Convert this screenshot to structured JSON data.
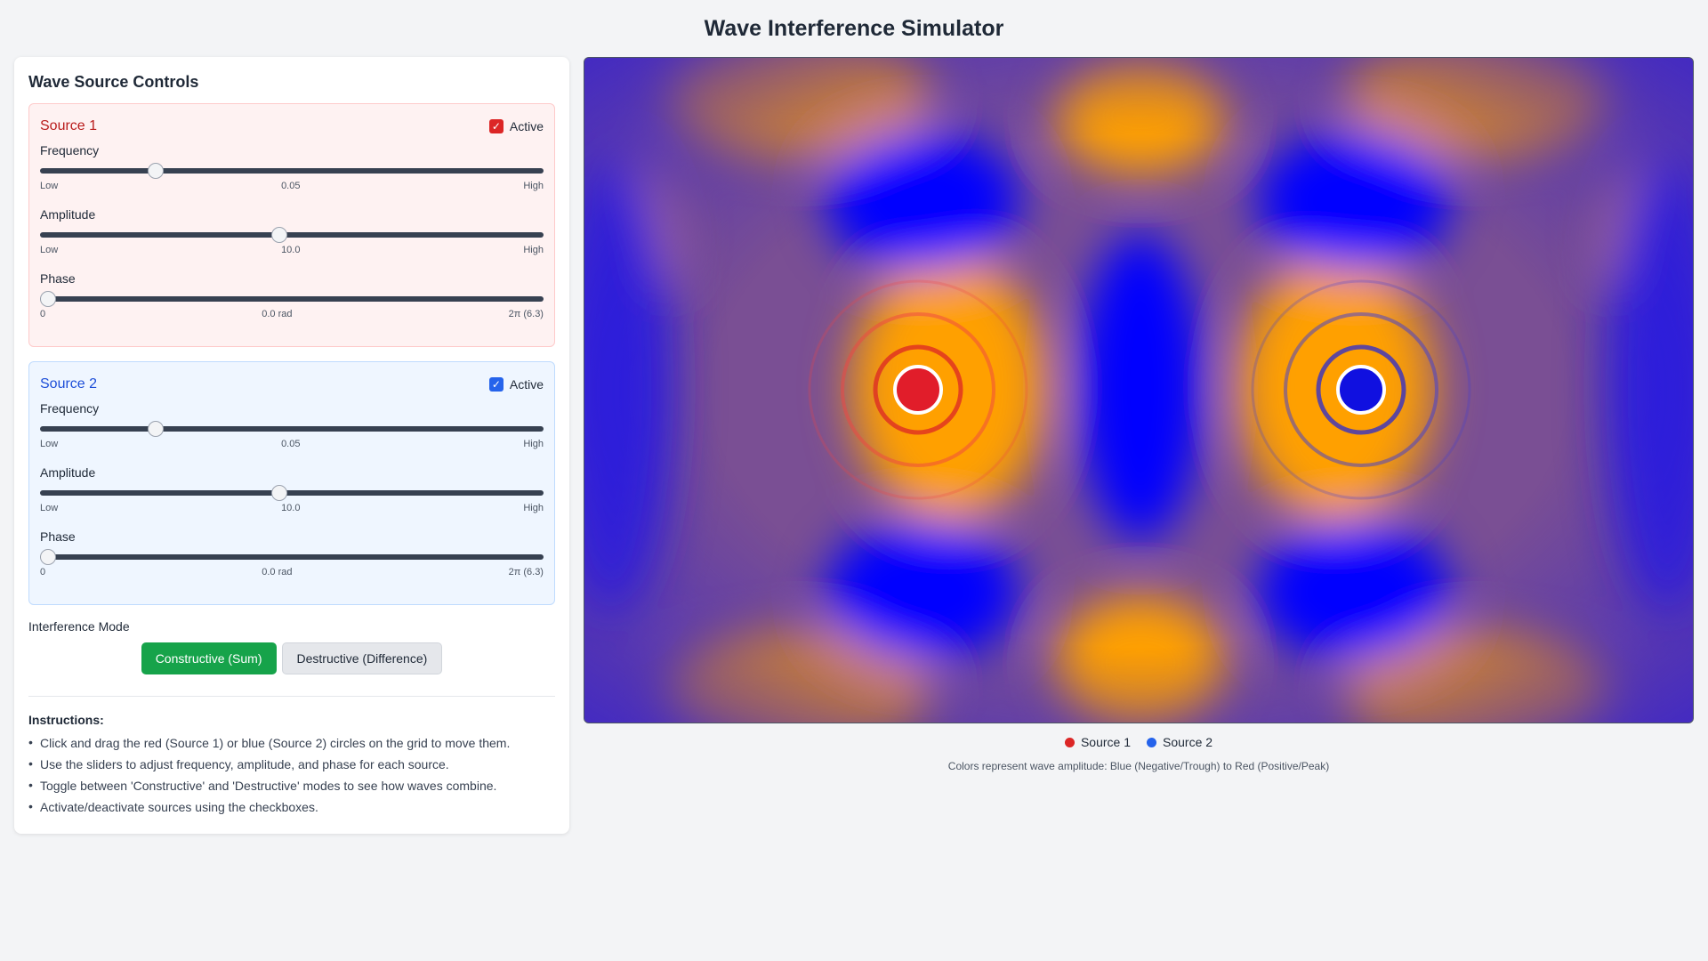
{
  "title": "Wave Interference Simulator",
  "panel": {
    "title": "Wave Source Controls",
    "sources": [
      {
        "name": "Source 1",
        "active_label": "Active",
        "active": true,
        "color": "#dc2626",
        "frequency": {
          "label": "Frequency",
          "low": "Low",
          "value": "0.05",
          "high": "High",
          "fraction": 0.22
        },
        "amplitude": {
          "label": "Amplitude",
          "low": "Low",
          "value": "10.0",
          "high": "High",
          "fraction": 0.475
        },
        "phase": {
          "label": "Phase",
          "low": "0",
          "value": "0.0 rad",
          "high": "2π (6.3)",
          "fraction": 0.0
        }
      },
      {
        "name": "Source 2",
        "active_label": "Active",
        "active": true,
        "color": "#2563eb",
        "frequency": {
          "label": "Frequency",
          "low": "Low",
          "value": "0.05",
          "high": "High",
          "fraction": 0.22
        },
        "amplitude": {
          "label": "Amplitude",
          "low": "Low",
          "value": "10.0",
          "high": "High",
          "fraction": 0.475
        },
        "phase": {
          "label": "Phase",
          "low": "0",
          "value": "0.0 rad",
          "high": "2π (6.3)",
          "fraction": 0.0
        }
      }
    ],
    "mode": {
      "label": "Interference Mode",
      "constructive": "Constructive (Sum)",
      "destructive": "Destructive (Difference)",
      "selected": "constructive"
    },
    "instructions": {
      "title": "Instructions:",
      "items": [
        "Click and drag the red (Source 1) or blue (Source 2) circles on the grid to move them.",
        "Use the sliders to adjust frequency, amplitude, and phase for each source.",
        "Toggle between 'Constructive' and 'Destructive' modes to see how waves combine.",
        "Activate/deactivate sources using the checkboxes."
      ]
    }
  },
  "legend": {
    "source1": "Source 1",
    "source2": "Source 2",
    "source1_color": "#dc2626",
    "source2_color": "#2563eb"
  },
  "caption": "Colors represent wave amplitude: Blue (Negative/Trough) to Red (Positive/Peak)",
  "colors": {
    "trough": "#0000ff",
    "peak": "#ffa000",
    "neutral": "#8a5a8a",
    "constructive_button": "#16a34a"
  }
}
